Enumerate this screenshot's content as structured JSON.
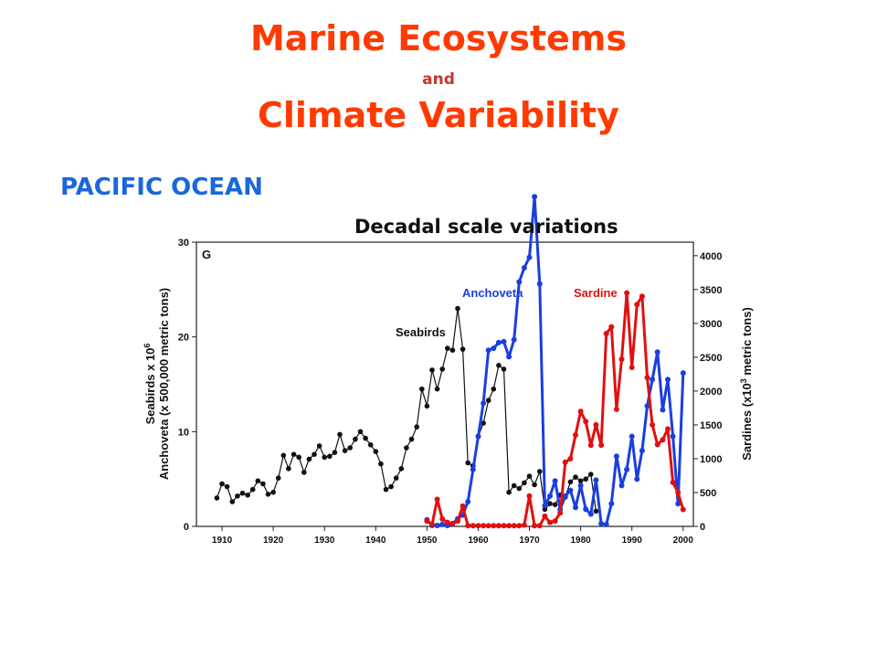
{
  "header": {
    "title_line1": "Marine Ecosystems",
    "title_connector": "and",
    "title_line2": "Climate Variability"
  },
  "region_label": "PACIFIC OCEAN",
  "subtitle": "Decadal scale variations",
  "chart_data": {
    "type": "line",
    "panel_label": "G",
    "x_ticks": [
      1910,
      1920,
      1930,
      1940,
      1950,
      1960,
      1970,
      1980,
      1990,
      2000
    ],
    "xlim": [
      1905,
      2002
    ],
    "y_left": {
      "label_line1": "Seabirds x 10",
      "label_exp": "6",
      "label_line2": "Anchoveta (x 500,000 metric tons)",
      "ticks": [
        0,
        10,
        20,
        30
      ],
      "ylim": [
        0,
        30
      ]
    },
    "y_right": {
      "label_main": "Sardines (x10",
      "label_exp": "3",
      "label_tail": " metric tons)",
      "ticks": [
        0,
        500,
        1000,
        1500,
        2000,
        2500,
        3000,
        3500,
        4000
      ],
      "ylim": [
        0,
        4200
      ]
    },
    "series": [
      {
        "name": "Seabirds",
        "color": "#111111",
        "axis": "left",
        "x": [
          1909,
          1910,
          1911,
          1912,
          1913,
          1914,
          1915,
          1916,
          1917,
          1918,
          1919,
          1920,
          1921,
          1922,
          1923,
          1924,
          1925,
          1926,
          1927,
          1928,
          1929,
          1930,
          1931,
          1932,
          1933,
          1934,
          1935,
          1936,
          1937,
          1938,
          1939,
          1940,
          1941,
          1942,
          1943,
          1944,
          1945,
          1946,
          1947,
          1948,
          1949,
          1950,
          1951,
          1952,
          1953,
          1954,
          1955,
          1956,
          1957,
          1958,
          1959,
          1960,
          1961,
          1962,
          1963,
          1964,
          1965,
          1966,
          1967,
          1968,
          1969,
          1970,
          1971,
          1972,
          1973,
          1974,
          1975,
          1976,
          1977,
          1978,
          1979,
          1980,
          1981,
          1982,
          1983
        ],
        "values": [
          3.0,
          4.5,
          4.2,
          2.6,
          3.2,
          3.5,
          3.3,
          3.9,
          4.8,
          4.5,
          3.4,
          3.6,
          5.1,
          7.5,
          6.1,
          7.6,
          7.3,
          5.7,
          7.1,
          7.6,
          8.5,
          7.3,
          7.4,
          7.8,
          9.7,
          8.0,
          8.3,
          9.2,
          10.0,
          9.3,
          8.6,
          7.9,
          6.6,
          3.9,
          4.2,
          5.1,
          6.1,
          8.3,
          9.2,
          10.5,
          14.5,
          12.7,
          16.5,
          14.5,
          16.6,
          18.8,
          18.6,
          23.0,
          18.7,
          6.7,
          6.4,
          9.5,
          10.9,
          13.3,
          14.5,
          17.0,
          16.6,
          3.6,
          4.3,
          4.0,
          4.6,
          5.3,
          4.4,
          5.8,
          1.8,
          2.4,
          2.3,
          3.3,
          3.1,
          4.7,
          5.2,
          4.8,
          5.0,
          5.5,
          1.6
        ]
      },
      {
        "name": "Anchoveta",
        "color": "#1a3fe0",
        "axis": "left",
        "x": [
          1950,
          1951,
          1952,
          1953,
          1954,
          1955,
          1956,
          1957,
          1958,
          1959,
          1960,
          1961,
          1962,
          1963,
          1964,
          1965,
          1966,
          1967,
          1968,
          1969,
          1970,
          1971,
          1972,
          1973,
          1974,
          1975,
          1976,
          1977,
          1978,
          1979,
          1980,
          1981,
          1982,
          1983,
          1984,
          1985,
          1986,
          1987,
          1988,
          1989,
          1990,
          1991,
          1992,
          1993,
          1994,
          1995,
          1996,
          1997,
          1998,
          1999,
          2000
        ],
        "values": [
          0.7,
          0.1,
          0.1,
          0.2,
          0.1,
          0.3,
          0.8,
          1.2,
          2.6,
          6.0,
          9.5,
          13.0,
          18.6,
          18.8,
          19.4,
          19.5,
          17.9,
          19.7,
          25.8,
          27.3,
          28.4,
          34.8,
          25.6,
          2.2,
          3.2,
          4.8,
          1.8,
          3.2,
          3.8,
          2.0,
          4.3,
          1.8,
          1.3,
          4.9,
          0.3,
          0.2,
          2.4,
          7.4,
          4.3,
          6.0,
          9.5,
          5.0,
          8.0,
          12.7,
          15.5,
          18.4,
          12.3,
          15.5,
          9.5,
          2.4,
          16.2
        ]
      },
      {
        "name": "Sardine",
        "color": "#e01010",
        "axis": "right",
        "x": [
          1950,
          1951,
          1952,
          1953,
          1954,
          1955,
          1956,
          1957,
          1958,
          1959,
          1960,
          1961,
          1962,
          1963,
          1964,
          1965,
          1966,
          1967,
          1968,
          1969,
          1970,
          1971,
          1972,
          1973,
          1974,
          1975,
          1976,
          1977,
          1978,
          1979,
          1980,
          1981,
          1982,
          1983,
          1984,
          1985,
          1986,
          1987,
          1988,
          1989,
          1990,
          1991,
          1992,
          1993,
          1994,
          1995,
          1996,
          1997,
          1998,
          1999,
          2000
        ],
        "values": [
          80,
          30,
          400,
          110,
          60,
          40,
          80,
          300,
          10,
          10,
          10,
          10,
          10,
          10,
          10,
          10,
          10,
          10,
          10,
          20,
          450,
          10,
          10,
          150,
          60,
          80,
          200,
          950,
          1000,
          1350,
          1700,
          1550,
          1200,
          1500,
          1200,
          2850,
          2950,
          1730,
          2470,
          3450,
          2350,
          3280,
          3400,
          2200,
          1500,
          1210,
          1280,
          1440,
          650,
          500,
          250
        ]
      }
    ],
    "annotations": [
      "Seabirds",
      "Anchoveta",
      "Sardine"
    ]
  }
}
